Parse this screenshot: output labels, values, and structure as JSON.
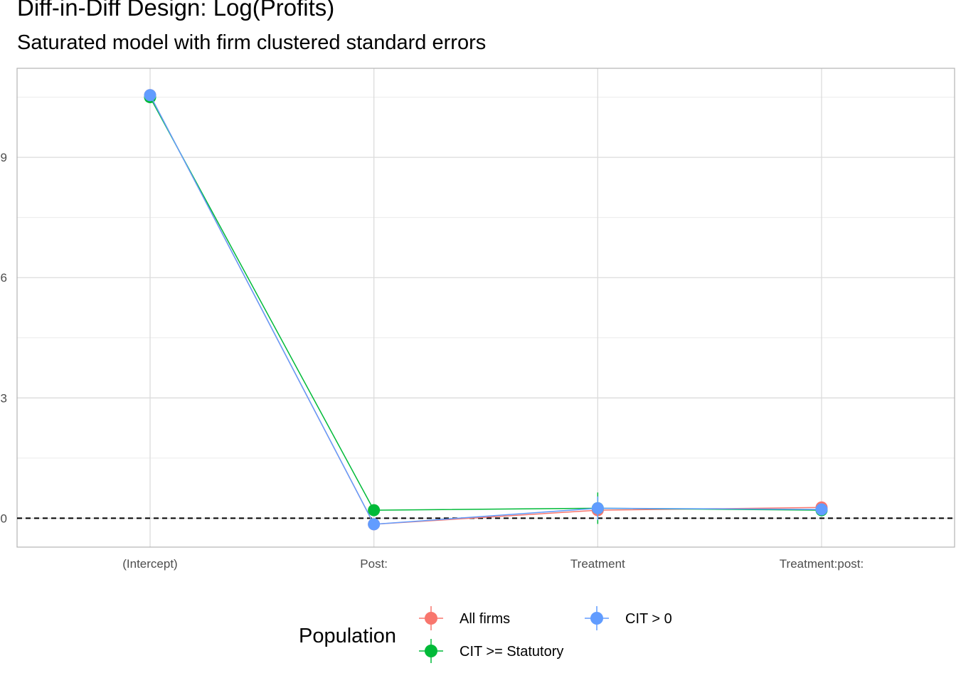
{
  "title": "Diff-in-Diff Design: Log(Profits)",
  "subtitle": "Saturated model with firm clustered standard errors",
  "chart_data": {
    "type": "line",
    "categories": [
      "(Intercept)",
      "Post:",
      "Treatment",
      "Treatment:post:"
    ],
    "y_ticks": [
      0,
      3,
      6,
      9
    ],
    "ylim": [
      -0.72,
      11.22
    ],
    "reference_line": 0,
    "grid": true,
    "legend_position": "bottom",
    "legend_title": "Population",
    "series": [
      {
        "name": "All firms",
        "color": "#F8766D",
        "values": [
          10.55,
          -0.15,
          0.2,
          0.27
        ],
        "se": [
          0.03,
          0.03,
          0.06,
          0.07
        ]
      },
      {
        "name": "CIT >= Statutory",
        "color": "#00BA38",
        "values": [
          10.5,
          0.2,
          0.25,
          0.2
        ],
        "se": [
          0.03,
          0.05,
          0.2,
          0.07
        ]
      },
      {
        "name": "CIT > 0",
        "color": "#619CFF",
        "values": [
          10.55,
          -0.15,
          0.25,
          0.22
        ],
        "se": [
          0.03,
          0.03,
          0.15,
          0.07
        ]
      }
    ]
  }
}
